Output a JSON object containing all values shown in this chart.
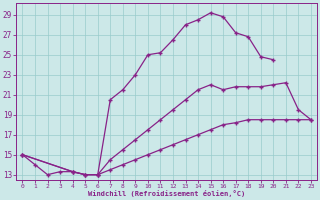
{
  "xlabel": "Windchill (Refroidissement éolien,°C)",
  "bg_color": "#cce8e8",
  "line_color": "#882288",
  "grid_color": "#99cccc",
  "xlim": [
    -0.5,
    23.5
  ],
  "ylim": [
    12.5,
    30.2
  ],
  "xticks": [
    0,
    1,
    2,
    3,
    4,
    5,
    6,
    7,
    8,
    9,
    10,
    11,
    12,
    13,
    14,
    15,
    16,
    17,
    18,
    19,
    20,
    21,
    22,
    23
  ],
  "yticks": [
    13,
    15,
    17,
    19,
    21,
    23,
    25,
    27,
    29
  ],
  "line1_x": [
    0,
    1,
    2,
    3,
    4,
    5,
    6,
    7,
    8,
    9,
    10,
    11,
    12,
    13,
    14,
    15,
    16,
    17,
    18,
    19,
    20
  ],
  "line1_y": [
    15,
    14,
    13,
    13.3,
    13.3,
    13,
    13,
    20.5,
    21.5,
    23,
    25,
    25.2,
    26.5,
    28,
    28.5,
    29.2,
    28.8,
    27.2,
    26.8,
    24.8,
    24.5
  ],
  "line2_x": [
    0,
    4,
    5,
    6,
    7,
    8,
    9,
    10,
    11,
    12,
    13,
    14,
    15,
    16,
    17,
    18,
    19,
    20,
    21,
    22,
    23
  ],
  "line2_y": [
    15,
    13.3,
    13,
    13,
    14.5,
    15.5,
    16.5,
    17.5,
    18.5,
    19.5,
    20.5,
    21.5,
    22,
    21.5,
    21.8,
    21.8,
    21.8,
    22,
    22.2,
    19.5,
    18.5
  ],
  "line3_x": [
    0,
    4,
    5,
    6,
    7,
    8,
    9,
    10,
    11,
    12,
    13,
    14,
    15,
    16,
    17,
    18,
    19,
    20,
    21,
    22,
    23
  ],
  "line3_y": [
    15,
    13.3,
    13,
    13,
    13.5,
    14,
    14.5,
    15,
    15.5,
    16,
    16.5,
    17,
    17.5,
    18,
    18.2,
    18.5,
    18.5,
    18.5,
    18.5,
    18.5,
    18.5
  ]
}
